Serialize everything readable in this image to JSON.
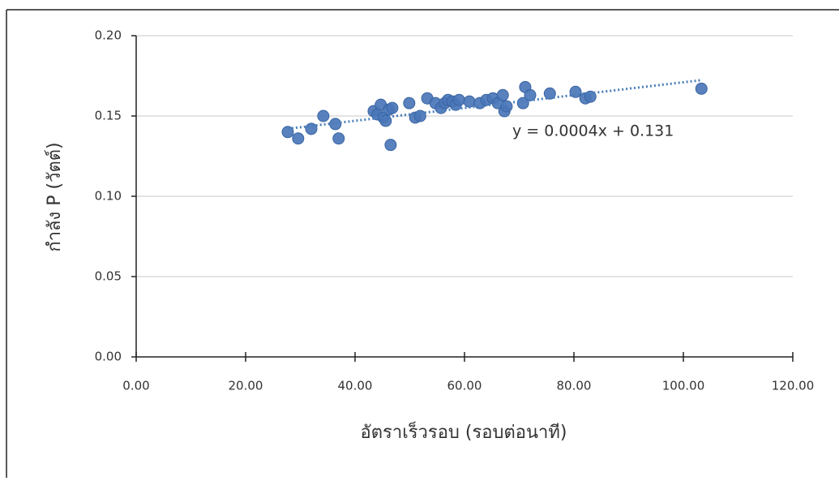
{
  "chart_data": {
    "type": "scatter",
    "x_label": "อัตราเร็วรอบ (รอบต่อนาที)",
    "y_label": "กำลัง P (วัตต์)",
    "xlim": [
      0,
      120
    ],
    "ylim": [
      0,
      0.2
    ],
    "xticks": [
      {
        "value": 0,
        "label": "0.00"
      },
      {
        "value": 20,
        "label": "20.00"
      },
      {
        "value": 40,
        "label": "40.00"
      },
      {
        "value": 60,
        "label": "60.00"
      },
      {
        "value": 80,
        "label": "80.00"
      },
      {
        "value": 100,
        "label": "100.00"
      },
      {
        "value": 120,
        "label": "120.00"
      }
    ],
    "yticks": [
      {
        "value": 0,
        "label": "0.00"
      },
      {
        "value": 0.05,
        "label": "0.05"
      },
      {
        "value": 0.1,
        "label": "0.10"
      },
      {
        "value": 0.15,
        "label": "0.15"
      },
      {
        "value": 0.2,
        "label": "0.20"
      }
    ],
    "grid": true,
    "color": "#4a76b8",
    "x": [
      27.7,
      29.6,
      32.0,
      34.2,
      36.4,
      37.0,
      43.4,
      44.1,
      44.7,
      45.2,
      45.6,
      46.2,
      46.5,
      46.8,
      49.9,
      51.0,
      51.9,
      53.2,
      54.7,
      55.7,
      56.4,
      57.0,
      57.8,
      58.4,
      59.0,
      60.9,
      62.8,
      64.0,
      65.2,
      66.1,
      67.0,
      67.3,
      67.7,
      70.7,
      71.1,
      72.0,
      75.6,
      80.3,
      82.1,
      83.0,
      103.3
    ],
    "values": [
      0.14,
      0.136,
      0.142,
      0.15,
      0.145,
      0.136,
      0.153,
      0.151,
      0.157,
      0.149,
      0.147,
      0.154,
      0.132,
      0.155,
      0.158,
      0.149,
      0.15,
      0.161,
      0.158,
      0.155,
      0.158,
      0.16,
      0.159,
      0.157,
      0.16,
      0.159,
      0.158,
      0.16,
      0.161,
      0.158,
      0.163,
      0.153,
      0.156,
      0.158,
      0.168,
      0.163,
      0.164,
      0.165,
      0.161,
      0.162,
      0.167
    ],
    "trendline": {
      "slope": 0.0004,
      "intercept": 0.131,
      "label": "y = 0.0004x + 0.131",
      "color": "#4a7ebb"
    }
  }
}
